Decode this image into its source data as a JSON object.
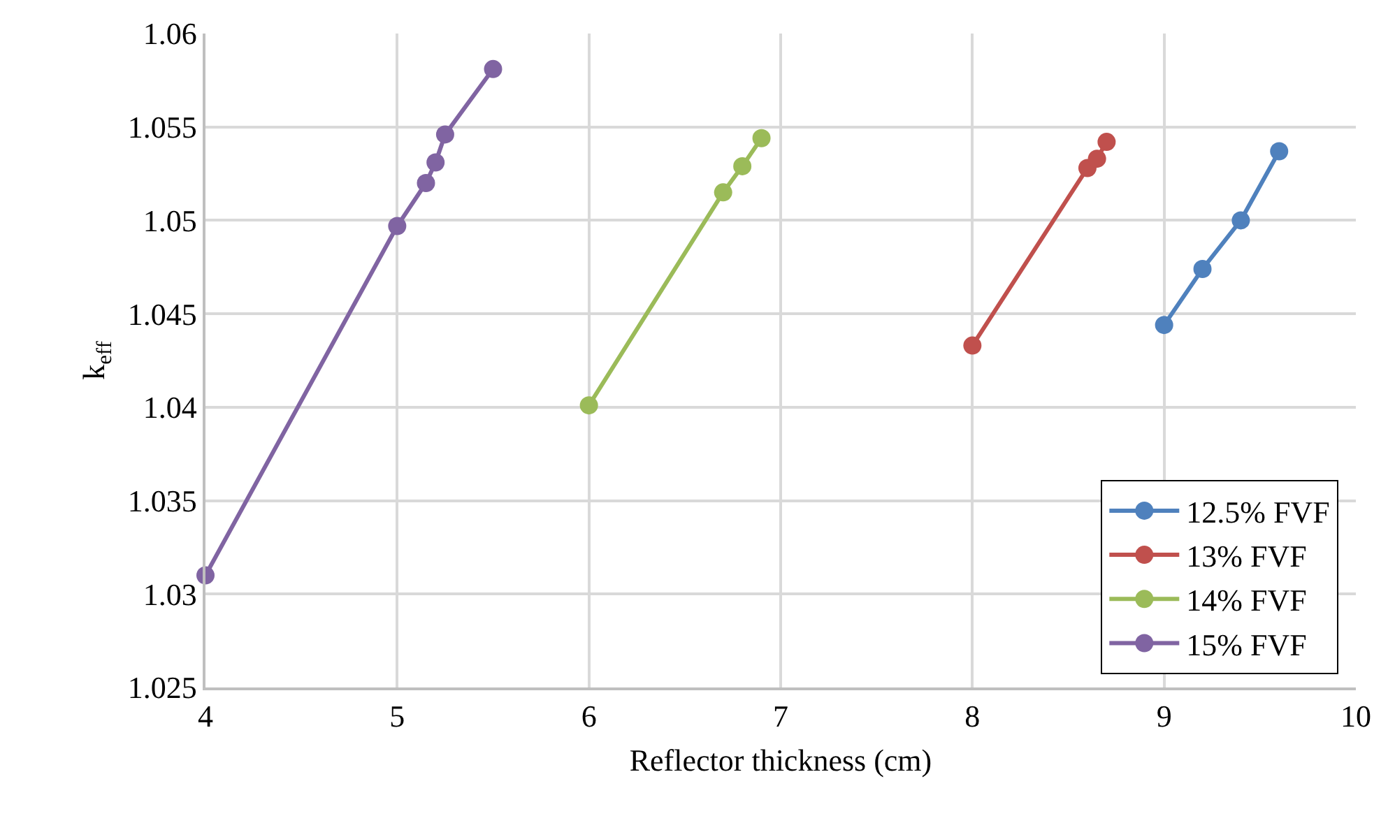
{
  "chart_data": {
    "type": "line",
    "xlabel": "Reflector thickness (cm)",
    "ylabel": "k$_{eff}$",
    "xlim": [
      4,
      10
    ],
    "xticks": [
      4,
      5,
      6,
      7,
      8,
      9,
      10
    ],
    "ylim": [
      1.025,
      1.06
    ],
    "yticks": [
      1.025,
      1.03,
      1.035,
      1.04,
      1.045,
      1.05,
      1.055,
      1.06
    ],
    "grid": true,
    "legend": "bottom right",
    "marker": "circle",
    "line_style": "solid",
    "series": [
      {
        "name": "12.5% FVF",
        "color": "#4f81bd",
        "x": [
          9,
          9.2,
          9.4,
          9.6
        ],
        "values": [
          1.0444,
          1.0474,
          1.05,
          1.0537
        ]
      },
      {
        "name": "13% FVF",
        "color": "#c0504d",
        "x": [
          8,
          8.6,
          8.65,
          8.7
        ],
        "values": [
          1.0433,
          1.0528,
          1.0533,
          1.0542
        ]
      },
      {
        "name": "14% FVF",
        "color": "#9bbb59",
        "x": [
          6,
          6.7,
          6.8,
          6.9
        ],
        "values": [
          1.0401,
          1.0515,
          1.0529,
          1.0544
        ]
      },
      {
        "name": "15% FVF",
        "color": "#8064a2",
        "x": [
          4,
          5,
          5.15,
          5.2,
          5.25,
          5.5
        ],
        "values": [
          1.031,
          1.0497,
          1.052,
          1.0531,
          1.0546,
          1.0581
        ]
      }
    ]
  }
}
